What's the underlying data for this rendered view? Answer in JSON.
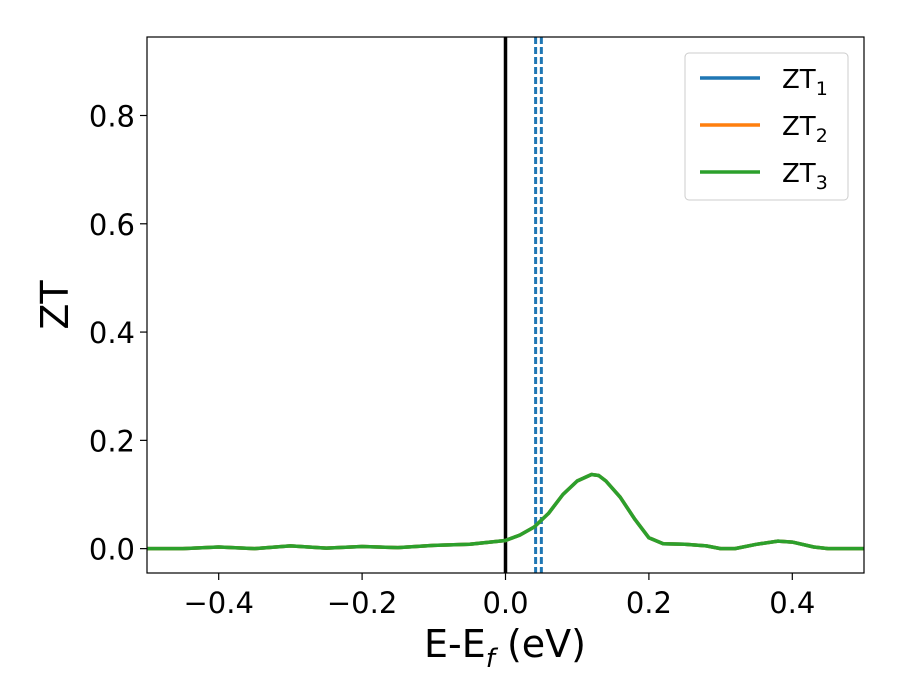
{
  "chart_data": {
    "type": "line",
    "xlabel": {
      "main": "E-E",
      "sub": "f",
      "unit": " (eV)"
    },
    "ylabel": "ZT",
    "xlim": [
      -0.5,
      0.5
    ],
    "ylim": [
      -0.045,
      0.945
    ],
    "xticks": [
      -0.4,
      -0.2,
      0.0,
      0.2,
      0.4
    ],
    "xtick_labels": [
      "−0.4",
      "−0.2",
      "0.0",
      "0.2",
      "0.4"
    ],
    "yticks": [
      0.0,
      0.2,
      0.4,
      0.6,
      0.8
    ],
    "ytick_labels": [
      "0.0",
      "0.2",
      "0.4",
      "0.6",
      "0.8"
    ],
    "legend_position": "top-right",
    "series": [
      {
        "name": "ZT",
        "name_sub": "1",
        "color": "#1f77b4",
        "x": [
          -0.5,
          -0.45,
          -0.4,
          -0.35,
          -0.3,
          -0.25,
          -0.2,
          -0.15,
          -0.1,
          -0.05,
          0.0,
          0.02,
          0.04,
          0.06,
          0.08,
          0.1,
          0.12,
          0.13,
          0.14,
          0.16,
          0.18,
          0.2,
          0.22,
          0.25,
          0.28,
          0.3,
          0.32,
          0.35,
          0.38,
          0.4,
          0.43,
          0.45,
          0.5
        ],
        "y": [
          0.0,
          0.0,
          0.003,
          0.0,
          0.005,
          0.001,
          0.004,
          0.002,
          0.006,
          0.008,
          0.015,
          0.025,
          0.04,
          0.065,
          0.1,
          0.125,
          0.137,
          0.135,
          0.125,
          0.095,
          0.055,
          0.02,
          0.009,
          0.008,
          0.005,
          0.0,
          0.0,
          0.008,
          0.014,
          0.012,
          0.003,
          0.0,
          0.0
        ]
      },
      {
        "name": "ZT",
        "name_sub": "2",
        "color": "#ff7f0e",
        "x": [
          -0.5,
          -0.45,
          -0.4,
          -0.35,
          -0.3,
          -0.25,
          -0.2,
          -0.15,
          -0.1,
          -0.05,
          0.0,
          0.02,
          0.04,
          0.06,
          0.08,
          0.1,
          0.12,
          0.13,
          0.14,
          0.16,
          0.18,
          0.2,
          0.22,
          0.25,
          0.28,
          0.3,
          0.32,
          0.35,
          0.38,
          0.4,
          0.43,
          0.45,
          0.5
        ],
        "y": [
          0.0,
          0.0,
          0.003,
          0.0,
          0.005,
          0.001,
          0.004,
          0.002,
          0.006,
          0.008,
          0.015,
          0.025,
          0.04,
          0.065,
          0.1,
          0.125,
          0.137,
          0.135,
          0.125,
          0.095,
          0.055,
          0.02,
          0.009,
          0.008,
          0.005,
          0.0,
          0.0,
          0.008,
          0.014,
          0.012,
          0.003,
          0.0,
          0.0
        ]
      },
      {
        "name": "ZT",
        "name_sub": "3",
        "color": "#2ca02c",
        "x": [
          -0.5,
          -0.45,
          -0.4,
          -0.35,
          -0.3,
          -0.25,
          -0.2,
          -0.15,
          -0.1,
          -0.05,
          0.0,
          0.02,
          0.04,
          0.06,
          0.08,
          0.1,
          0.12,
          0.13,
          0.14,
          0.16,
          0.18,
          0.2,
          0.22,
          0.25,
          0.28,
          0.3,
          0.32,
          0.35,
          0.38,
          0.4,
          0.43,
          0.45,
          0.5
        ],
        "y": [
          0.0,
          0.0,
          0.003,
          0.0,
          0.005,
          0.001,
          0.004,
          0.002,
          0.006,
          0.008,
          0.015,
          0.025,
          0.04,
          0.065,
          0.1,
          0.125,
          0.137,
          0.135,
          0.125,
          0.095,
          0.055,
          0.02,
          0.009,
          0.008,
          0.005,
          0.0,
          0.0,
          0.008,
          0.014,
          0.012,
          0.003,
          0.0,
          0.0
        ]
      }
    ],
    "vlines": [
      {
        "x": 0.0,
        "color": "#000000",
        "style": "solid"
      },
      {
        "x": 0.042,
        "color": "#1f77b4",
        "style": "dashed"
      },
      {
        "x": 0.05,
        "color": "#1f77b4",
        "style": "dashed"
      }
    ]
  }
}
